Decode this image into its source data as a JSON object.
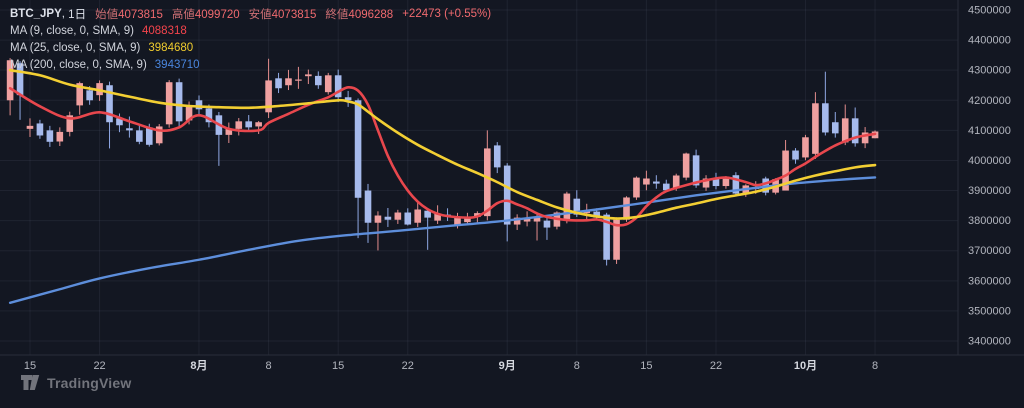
{
  "app_title": "TradingView chart",
  "colors": {
    "background": "#131722",
    "grid": "rgba(142,152,175,0.10)",
    "axis_border": "#2a2e39",
    "axis_text": "#b2b5be",
    "axis_month_text": "#d6d9e0",
    "up_candle": "#efa0a0",
    "down_candle": "#a6baec",
    "up_wick": "#e48d8d",
    "down_wick": "#8fa8e4",
    "ma9": "#e8474d",
    "ma25": "#f3cf33",
    "ma200": "#5d8edb",
    "ohlc_text": "#ef6a6f"
  },
  "legend": {
    "symbol": "BTC_JPY",
    "interval": "1日",
    "ohlc": [
      {
        "label": "始値",
        "value": "4073815"
      },
      {
        "label": "高値",
        "value": "4099720"
      },
      {
        "label": "安値",
        "value": "4073815"
      },
      {
        "label": "終値",
        "value": "4096288"
      }
    ],
    "change": "+22473 (+0.55%)",
    "ma_lines": [
      {
        "label": "MA (9, close, 0, SMA, 9)",
        "value": "4088318",
        "color": "#f4444c"
      },
      {
        "label": "MA (25, close, 0, SMA, 9)",
        "value": "3984680",
        "color": "#f0cc2e"
      },
      {
        "label": "MA (200, close, 0, SMA, 9)",
        "value": "3943710",
        "color": "#4a86dd"
      }
    ]
  },
  "logo_text": "TradingView",
  "chart_data": {
    "type": "candlestick",
    "symbol": "BTC_JPY",
    "interval": "1日",
    "convention": "red/pink = up (陽線), blue = down (陰線)",
    "price_axis": {
      "visible_min": 3350000,
      "visible_max": 4533000,
      "ticks": [
        4500000,
        4400000,
        4300000,
        4200000,
        4100000,
        4000000,
        3900000,
        3800000,
        3700000,
        3600000,
        3500000,
        3400000
      ]
    },
    "time_axis": {
      "ticks": [
        {
          "i": 2,
          "label": "15"
        },
        {
          "i": 9,
          "label": "22"
        },
        {
          "i": 19,
          "label": "8月",
          "month": true
        },
        {
          "i": 26,
          "label": "8"
        },
        {
          "i": 33,
          "label": "15"
        },
        {
          "i": 40,
          "label": "22"
        },
        {
          "i": 50,
          "label": "9月",
          "month": true
        },
        {
          "i": 57,
          "label": "8"
        },
        {
          "i": 64,
          "label": "15"
        },
        {
          "i": 71,
          "label": "22"
        },
        {
          "i": 80,
          "label": "10月",
          "month": true
        },
        {
          "i": 87,
          "label": "8"
        }
      ]
    },
    "candles": [
      [
        "7/13",
        4200000,
        4340000,
        4150000,
        4333000
      ],
      [
        "7/14",
        4323000,
        4330000,
        4135000,
        4217000
      ],
      [
        "7/15",
        4105000,
        4140000,
        4078000,
        4115000
      ],
      [
        "7/16",
        4123000,
        4135000,
        4072000,
        4083000
      ],
      [
        "7/17",
        4100000,
        4115000,
        4045000,
        4062000
      ],
      [
        "7/18",
        4063000,
        4110000,
        4048000,
        4095000
      ],
      [
        "7/19",
        4095000,
        4162000,
        4080000,
        4150000
      ],
      [
        "7/20",
        4183000,
        4262000,
        4152000,
        4257000
      ],
      [
        "7/21",
        4233000,
        4247000,
        4185000,
        4200000
      ],
      [
        "7/22",
        4217000,
        4266000,
        4198000,
        4257000
      ],
      [
        "7/23",
        4250000,
        4262000,
        4040000,
        4127000
      ],
      [
        "7/24",
        4140000,
        4156000,
        4094000,
        4117000
      ],
      [
        "7/25",
        4107000,
        4146000,
        4076000,
        4100000
      ],
      [
        "7/26",
        4100000,
        4116000,
        4054000,
        4062000
      ],
      [
        "7/27",
        4110000,
        4122000,
        4046000,
        4052000
      ],
      [
        "7/28",
        4057000,
        4121000,
        4050000,
        4113000
      ],
      [
        "7/29",
        4120000,
        4267000,
        4109000,
        4260000
      ],
      [
        "7/30",
        4260000,
        4272000,
        4114000,
        4130000
      ],
      [
        "7/31",
        4133000,
        4196000,
        4120000,
        4183000
      ],
      [
        "8/1",
        4200000,
        4216000,
        4150000,
        4170000
      ],
      [
        "8/2",
        4173000,
        4186000,
        4110000,
        4127000
      ],
      [
        "8/3",
        4150000,
        4161000,
        3982000,
        4085000
      ],
      [
        "8/4",
        4085000,
        4126000,
        4058000,
        4105000
      ],
      [
        "8/5",
        4105000,
        4141000,
        4083000,
        4130000
      ],
      [
        "8/6",
        4130000,
        4151000,
        4098000,
        4110000
      ],
      [
        "8/7",
        4113000,
        4131000,
        4088000,
        4127000
      ],
      [
        "8/8",
        4160000,
        4338000,
        4141000,
        4266000
      ],
      [
        "8/9",
        4273000,
        4291000,
        4224000,
        4240000
      ],
      [
        "8/10",
        4250000,
        4301000,
        4234000,
        4273000
      ],
      [
        "8/11",
        4265000,
        4311000,
        4238000,
        4269000
      ],
      [
        "8/12",
        4280000,
        4302000,
        4254000,
        4286000
      ],
      [
        "8/13",
        4281000,
        4296000,
        4238000,
        4250000
      ],
      [
        "8/14",
        4227000,
        4291000,
        4219000,
        4283000
      ],
      [
        "8/15",
        4283000,
        4302000,
        4194000,
        4210000
      ],
      [
        "8/16",
        4210000,
        4231000,
        4178000,
        4200000
      ],
      [
        "8/17",
        4200000,
        4206000,
        3742000,
        3876000
      ],
      [
        "8/18",
        3900000,
        3922000,
        3726000,
        3793000
      ],
      [
        "8/19",
        3793000,
        3831000,
        3701000,
        3817000
      ],
      [
        "8/20",
        3813000,
        3842000,
        3779000,
        3803000
      ],
      [
        "8/21",
        3803000,
        3836000,
        3789000,
        3827000
      ],
      [
        "8/22",
        3827000,
        3841000,
        3784000,
        3787000
      ],
      [
        "8/23",
        3793000,
        3861000,
        3779000,
        3837000
      ],
      [
        "8/24",
        3833000,
        3842000,
        3703000,
        3810000
      ],
      [
        "8/25",
        3800000,
        3851000,
        3789000,
        3823000
      ],
      [
        "8/26",
        3820000,
        3841000,
        3799000,
        3814000
      ],
      [
        "8/27",
        3787000,
        3826000,
        3774000,
        3810000
      ],
      [
        "8/28",
        3795000,
        3826000,
        3784000,
        3812000
      ],
      [
        "8/29",
        3812000,
        3831000,
        3794000,
        3825000
      ],
      [
        "8/30",
        3815000,
        4100000,
        3801000,
        4040000
      ],
      [
        "8/31",
        4050000,
        4061000,
        3958000,
        3977000
      ],
      [
        "9/1",
        3983000,
        3991000,
        3731000,
        3787000
      ],
      [
        "9/2",
        3787000,
        3821000,
        3769000,
        3810000
      ],
      [
        "9/3",
        3797000,
        3831000,
        3781000,
        3807000
      ],
      [
        "9/4",
        3797000,
        3821000,
        3734000,
        3813000
      ],
      [
        "9/5",
        3800000,
        3816000,
        3736000,
        3777000
      ],
      [
        "9/6",
        3780000,
        3831000,
        3771000,
        3827000
      ],
      [
        "9/7",
        3800000,
        3896000,
        3791000,
        3890000
      ],
      [
        "9/8",
        3873000,
        3901000,
        3812000,
        3820000
      ],
      [
        "9/9",
        3825000,
        3856000,
        3804000,
        3833000
      ],
      [
        "9/10",
        3830000,
        3841000,
        3801000,
        3810000
      ],
      [
        "9/11",
        3820000,
        3826000,
        3651000,
        3670000
      ],
      [
        "9/12",
        3670000,
        3811000,
        3656000,
        3803000
      ],
      [
        "9/13",
        3803000,
        3881000,
        3796000,
        3877000
      ],
      [
        "9/14",
        3877000,
        3947000,
        3869000,
        3943000
      ],
      [
        "9/15",
        3920000,
        3966000,
        3901000,
        3940000
      ],
      [
        "9/16",
        3930000,
        3951000,
        3906000,
        3923000
      ],
      [
        "9/17",
        3923000,
        3936000,
        3896000,
        3901000
      ],
      [
        "9/18",
        3907000,
        3956000,
        3899000,
        3950000
      ],
      [
        "9/19",
        3943000,
        4026000,
        3934000,
        4023000
      ],
      [
        "9/20",
        4017000,
        4036000,
        3909000,
        3917000
      ],
      [
        "9/21",
        3910000,
        3951000,
        3899000,
        3940000
      ],
      [
        "9/22",
        3940000,
        3959000,
        3904000,
        3915000
      ],
      [
        "9/23",
        3915000,
        3948000,
        3906000,
        3945000
      ],
      [
        "9/24",
        3951000,
        3961000,
        3881000,
        3890000
      ],
      [
        "9/25",
        3890000,
        3921000,
        3879000,
        3917000
      ],
      [
        "9/26",
        3905000,
        3931000,
        3889000,
        3912000
      ],
      [
        "9/27",
        3940000,
        3946000,
        3884000,
        3893000
      ],
      [
        "9/28",
        3893000,
        3941000,
        3887000,
        3938000
      ],
      [
        "9/29",
        3900000,
        4068000,
        3932000,
        4033000
      ],
      [
        "9/30",
        4033000,
        4041000,
        3989000,
        4003000
      ],
      [
        "10/1",
        4010000,
        4085000,
        4001000,
        4077000
      ],
      [
        "10/2",
        4022000,
        4227000,
        4005000,
        4190000
      ],
      [
        "10/3",
        4190000,
        4295000,
        4083000,
        4093000
      ],
      [
        "10/4",
        4127000,
        4161000,
        4076000,
        4090000
      ],
      [
        "10/5",
        4060000,
        4186000,
        4051000,
        4140000
      ],
      [
        "10/6",
        4140000,
        4176000,
        4046000,
        4057000
      ],
      [
        "10/7",
        4057000,
        4111000,
        4041000,
        4093000
      ],
      [
        "10/8",
        4073815,
        4099720,
        4073815,
        4096288
      ]
    ],
    "moving_averages": [
      {
        "name": "MA9",
        "color": "#e8474d",
        "width": 2.6,
        "points": [
          [
            0,
            4240000
          ],
          [
            3,
            4180000
          ],
          [
            6,
            4140000
          ],
          [
            9,
            4160000
          ],
          [
            12,
            4130000
          ],
          [
            15,
            4100000
          ],
          [
            17,
            4110000
          ],
          [
            19,
            4150000
          ],
          [
            22,
            4105000
          ],
          [
            25,
            4100000
          ],
          [
            26,
            4125000
          ],
          [
            28,
            4155000
          ],
          [
            30,
            4185000
          ],
          [
            32,
            4210000
          ],
          [
            33,
            4228000
          ],
          [
            34,
            4243000
          ],
          [
            35,
            4232000
          ],
          [
            36,
            4185000
          ],
          [
            37,
            4100000
          ],
          [
            38,
            4015000
          ],
          [
            39,
            3950000
          ],
          [
            40,
            3900000
          ],
          [
            41,
            3863000
          ],
          [
            42,
            3838000
          ],
          [
            43,
            3823000
          ],
          [
            44,
            3815000
          ],
          [
            46,
            3810000
          ],
          [
            47,
            3814000
          ],
          [
            48,
            3833000
          ],
          [
            49,
            3858000
          ],
          [
            50,
            3866000
          ],
          [
            51,
            3854000
          ],
          [
            52,
            3841000
          ],
          [
            53,
            3824000
          ],
          [
            54,
            3812000
          ],
          [
            56,
            3802000
          ],
          [
            58,
            3801000
          ],
          [
            59,
            3804000
          ],
          [
            60,
            3796000
          ],
          [
            61,
            3785000
          ],
          [
            62,
            3788000
          ],
          [
            63,
            3810000
          ],
          [
            64,
            3848000
          ],
          [
            65,
            3877000
          ],
          [
            66,
            3898000
          ],
          [
            68,
            3918000
          ],
          [
            70,
            3934000
          ],
          [
            72,
            3943000
          ],
          [
            74,
            3928000
          ],
          [
            75,
            3918000
          ],
          [
            76,
            3924000
          ],
          [
            77,
            3936000
          ],
          [
            78,
            3950000
          ],
          [
            79,
            3972000
          ],
          [
            80,
            3990000
          ],
          [
            81,
            4012000
          ],
          [
            82,
            4032000
          ],
          [
            83,
            4050000
          ],
          [
            84,
            4064000
          ],
          [
            85,
            4076000
          ],
          [
            86,
            4083000
          ],
          [
            87,
            4088318
          ]
        ]
      },
      {
        "name": "MA25",
        "color": "#f3cf33",
        "width": 2.6,
        "points": [
          [
            0,
            4300000
          ],
          [
            3,
            4283000
          ],
          [
            6,
            4252000
          ],
          [
            9,
            4233000
          ],
          [
            12,
            4212000
          ],
          [
            15,
            4192000
          ],
          [
            18,
            4181000
          ],
          [
            21,
            4177000
          ],
          [
            24,
            4175000
          ],
          [
            27,
            4181000
          ],
          [
            30,
            4190000
          ],
          [
            33,
            4200000
          ],
          [
            34,
            4196000
          ],
          [
            35,
            4186000
          ],
          [
            36,
            4162000
          ],
          [
            37,
            4137000
          ],
          [
            39,
            4092000
          ],
          [
            41,
            4052000
          ],
          [
            43,
            4018000
          ],
          [
            45,
            3986000
          ],
          [
            47,
            3958000
          ],
          [
            49,
            3928000
          ],
          [
            51,
            3895000
          ],
          [
            53,
            3869000
          ],
          [
            55,
            3844000
          ],
          [
            57,
            3826000
          ],
          [
            59,
            3814000
          ],
          [
            61,
            3807000
          ],
          [
            63,
            3812000
          ],
          [
            65,
            3826000
          ],
          [
            67,
            3843000
          ],
          [
            69,
            3857000
          ],
          [
            71,
            3872000
          ],
          [
            73,
            3884000
          ],
          [
            75,
            3896000
          ],
          [
            77,
            3913000
          ],
          [
            79,
            3933000
          ],
          [
            81,
            3950000
          ],
          [
            83,
            3964000
          ],
          [
            85,
            3977000
          ],
          [
            87,
            3984680
          ]
        ]
      },
      {
        "name": "MA200",
        "color": "#5d8edb",
        "width": 2.4,
        "points": [
          [
            0,
            3527000
          ],
          [
            5,
            3572000
          ],
          [
            9,
            3608000
          ],
          [
            14,
            3642000
          ],
          [
            19,
            3670000
          ],
          [
            24,
            3703000
          ],
          [
            29,
            3733000
          ],
          [
            34,
            3752000
          ],
          [
            39,
            3766000
          ],
          [
            44,
            3782000
          ],
          [
            49,
            3797000
          ],
          [
            54,
            3816000
          ],
          [
            59,
            3837000
          ],
          [
            64,
            3860000
          ],
          [
            69,
            3884000
          ],
          [
            74,
            3905000
          ],
          [
            79,
            3924000
          ],
          [
            83,
            3935000
          ],
          [
            87,
            3943710
          ]
        ]
      }
    ]
  }
}
